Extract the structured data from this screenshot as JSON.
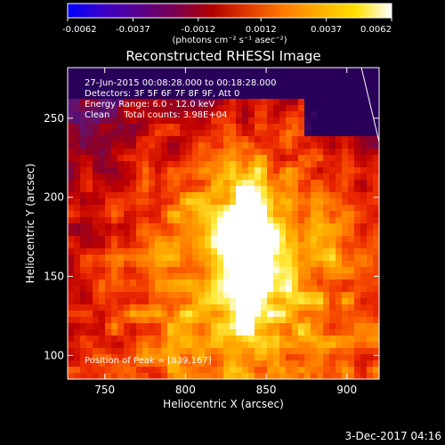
{
  "colorbar": {
    "ticks": [
      "-0.0062",
      "-0.0037",
      "-0.0012",
      "0.0012",
      "0.0037",
      "0.0062"
    ],
    "tick_values": [
      -0.0062,
      -0.0037,
      -0.0012,
      0.0012,
      0.0037,
      0.0062
    ],
    "vmin": -0.0062,
    "vmax": 0.0062,
    "unit_text": "(photons cm⁻² s⁻¹ asec⁻²)",
    "stops": [
      "#0000ff",
      "#3b00c8",
      "#5a008c",
      "#7a0050",
      "#b00000",
      "#e03a00",
      "#ff7a00",
      "#ffb000",
      "#ffe000",
      "#ffffff"
    ]
  },
  "chart_data": {
    "type": "heatmap",
    "title": "Reconstructed RHESSI Image",
    "xlabel": "Heliocentric X (arcsec)",
    "ylabel": "Heliocentric Y (arcsec)",
    "xlim": [
      727,
      920
    ],
    "ylim": [
      85,
      282
    ],
    "xticks": [
      750,
      800,
      850,
      900
    ],
    "yticks": [
      100,
      150,
      200,
      250
    ],
    "xtick_labels": [
      "750",
      "800",
      "850",
      "900"
    ],
    "ytick_labels": [
      "100",
      "150",
      "200",
      "250"
    ],
    "peak": {
      "x": 839,
      "y": 167
    },
    "limb_line": [
      [
        909,
        282
      ],
      [
        920,
        235
      ]
    ],
    "annotations": [
      "27-Jun-2015 00:08:28.000 to 00:18:28.000",
      "Detectors: 3F 5F 6F 7F 8F 9F, Att 0",
      "Energy Range: 6.0 - 12.0 keV",
      "Clean     Total counts: 3.98E+04"
    ],
    "peak_label": "Position of Peak = [839,167]"
  },
  "footer": {
    "timestamp": "3-Dec-2017 04:16"
  }
}
